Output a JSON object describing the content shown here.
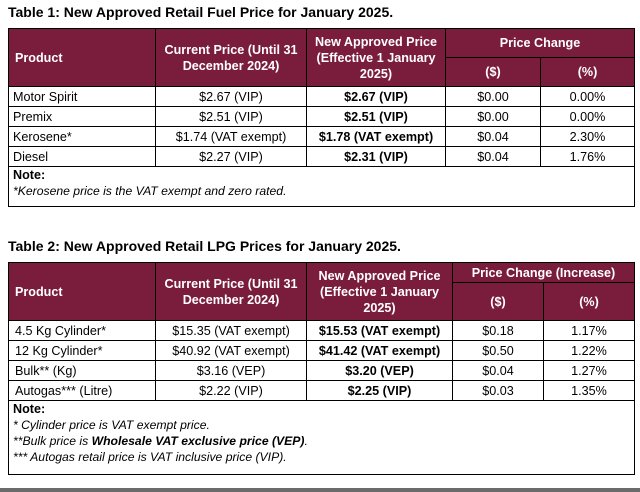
{
  "table1": {
    "title": "Table 1: New Approved Retail Fuel Price for January 2025.",
    "headers": {
      "product": "Product",
      "current": "Current Price (Until 31 December 2024)",
      "new": "New Approved Price (Effective 1 January 2025)",
      "change": "Price Change",
      "change_dollar": "($)",
      "change_pct": "(%)"
    },
    "rows": [
      {
        "product": "Motor Spirit",
        "current": "$2.67 (VIP)",
        "new": "$2.67 (VIP)",
        "change": "$0.00",
        "pct": "0.00%"
      },
      {
        "product": "Premix",
        "current": "$2.51 (VIP)",
        "new": "$2.51 (VIP)",
        "change": "$0.00",
        "pct": "0.00%"
      },
      {
        "product": "Kerosene*",
        "current": "$1.74 (VAT exempt)",
        "new": "$1.78 (VAT exempt)",
        "change": "$0.04",
        "pct": "2.30%"
      },
      {
        "product": "Diesel",
        "current": "$2.27 (VIP)",
        "new": "$2.31 (VIP)",
        "change": "$0.04",
        "pct": "1.76%"
      }
    ],
    "note_title": "Note:",
    "notes": [
      "*Kerosene price is the VAT exempt and zero rated."
    ]
  },
  "table2": {
    "title": "Table 2: New Approved Retail LPG Prices for January 2025.",
    "headers": {
      "product": "Product",
      "current": "Current Price (Until 31 December 2024)",
      "new": "New Approved Price (Effective 1 January 2025)",
      "change": "Price Change (Increase)",
      "change_dollar": "($)",
      "change_pct": "(%)"
    },
    "rows": [
      {
        "product": "4.5 Kg Cylinder*",
        "current": "$15.35 (VAT exempt)",
        "new": "$15.53 (VAT exempt)",
        "change": "$0.18",
        "pct": "1.17%"
      },
      {
        "product": "12 Kg Cylinder*",
        "current": "$40.92 (VAT exempt)",
        "new": "$41.42 (VAT exempt)",
        "change": "$0.50",
        "pct": "1.22%"
      },
      {
        "product": "Bulk** (Kg)",
        "current": "$3.16 (VEP)",
        "new": "$3.20 (VEP)",
        "change": "$0.04",
        "pct": "1.27%"
      },
      {
        "product": "Autogas*** (Litre)",
        "current": "$2.22 (VIP)",
        "new": "$2.25 (VIP)",
        "change": "$0.03",
        "pct": "1.35%"
      }
    ],
    "note_title": "Note:",
    "notes": {
      "cylinder": "* Cylinder price is VAT exempt price.",
      "bulk_prefix": "**Bulk price is ",
      "bulk_bold": "Wholesale VAT exclusive price (VEP)",
      "bulk_suffix": ".",
      "autogas": "*** Autogas retail price is VAT inclusive price (VIP)."
    }
  }
}
